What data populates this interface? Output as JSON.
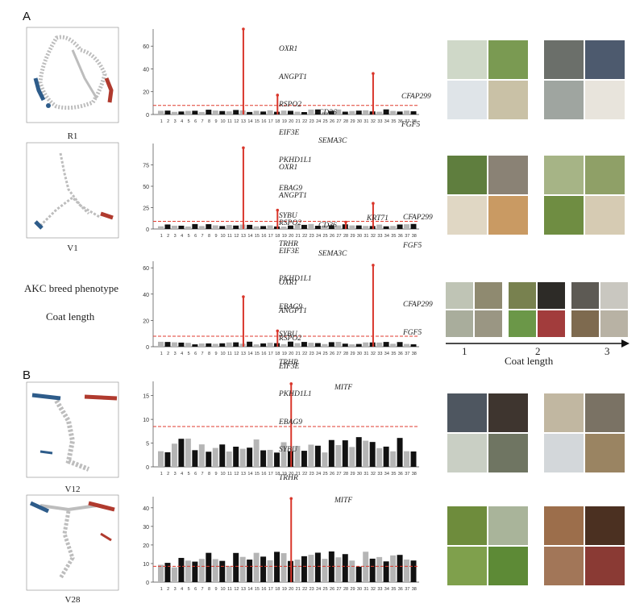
{
  "panel_letters": {
    "a": "A",
    "b": "B"
  },
  "umap_labels": [
    "R1",
    "V1",
    "V12",
    "V28"
  ],
  "phenotype_text": {
    "line1": "AKC breed phenotype",
    "line2": "Coat length"
  },
  "coat_length_axis": {
    "ticks": [
      "1",
      "2",
      "3"
    ],
    "label": "Coat length"
  },
  "gene_labels": {
    "coat_main": [
      "OXR1",
      "ANGPT1",
      "RSPO2",
      "EIF3E",
      "PKHD1L1",
      "EBAG9",
      "SYBU",
      "TRHR"
    ],
    "cd36": [
      "CD36",
      "SEMA3C"
    ],
    "cfap": [
      "CFAP299",
      "FGF5"
    ],
    "krt71": "KRT71",
    "mitf": "MITF"
  },
  "colors": {
    "sig": "#d9362b",
    "threshold": "#e03b2f",
    "chr_dark": "#111111",
    "chr_light": "#b5b5b5",
    "umap_gray": "#bdbdbd",
    "umap_blue": "#2e5c8a",
    "umap_red": "#b03a2e"
  },
  "chart_data": [
    {
      "type": "scatter",
      "name": "R1 manhattan",
      "ylim": [
        0,
        75
      ],
      "yticks": [
        0,
        20,
        40,
        60
      ],
      "threshold": 8,
      "peaks": [
        {
          "chr": 13,
          "y": 75
        },
        {
          "chr": 18,
          "y": 17
        },
        {
          "chr": 32,
          "y": 36
        }
      ]
    },
    {
      "type": "scatter",
      "name": "V1 manhattan",
      "ylim": [
        0,
        100
      ],
      "yticks": [
        0,
        25,
        50,
        75
      ],
      "threshold": 9,
      "peaks": [
        {
          "chr": 13,
          "y": 95
        },
        {
          "chr": 18,
          "y": 22
        },
        {
          "chr": 28,
          "y": 8
        },
        {
          "chr": 32,
          "y": 30
        }
      ]
    },
    {
      "type": "scatter",
      "name": "AKC coat length manhattan",
      "ylim": [
        0,
        65
      ],
      "yticks": [
        0,
        20,
        40,
        60
      ],
      "threshold": 8,
      "peaks": [
        {
          "chr": 13,
          "y": 38
        },
        {
          "chr": 18,
          "y": 12
        },
        {
          "chr": 32,
          "y": 62
        }
      ]
    },
    {
      "type": "scatter",
      "name": "V12 manhattan",
      "ylim": [
        0,
        18
      ],
      "yticks": [
        0,
        5,
        10,
        15
      ],
      "threshold": 8.5,
      "peaks": [
        {
          "chr": 20,
          "y": 17.5
        }
      ]
    },
    {
      "type": "scatter",
      "name": "V28 manhattan",
      "ylim": [
        0,
        46
      ],
      "yticks": [
        0,
        10,
        20,
        30,
        40
      ],
      "threshold": 8.5,
      "peaks": [
        {
          "chr": 20,
          "y": 45
        }
      ]
    }
  ],
  "chromosomes": [
    "1",
    "2",
    "3",
    "4",
    "5",
    "6",
    "7",
    "8",
    "9",
    "10",
    "11",
    "12",
    "13",
    "14",
    "15",
    "16",
    "17",
    "18",
    "19",
    "20",
    "21",
    "22",
    "23",
    "24",
    "25",
    "26",
    "27",
    "28",
    "29",
    "30",
    "31",
    "32",
    "33",
    "34",
    "35",
    "36",
    "37",
    "38"
  ]
}
